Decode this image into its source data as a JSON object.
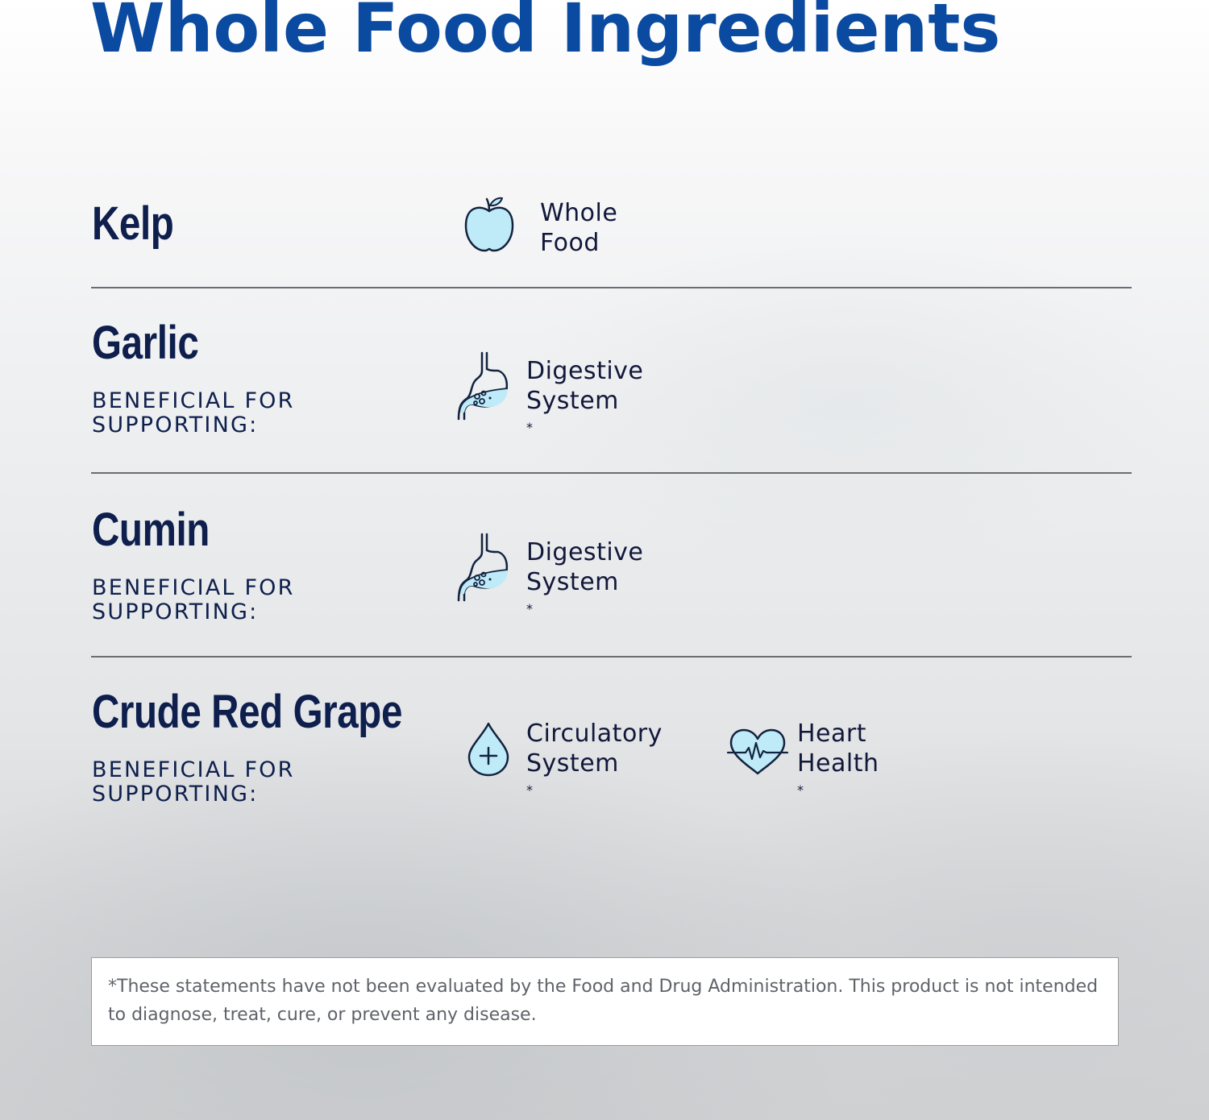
{
  "title": "Whole Food Ingredients",
  "ingredients": [
    {
      "name": "Kelp",
      "benefits": [
        {
          "icon": "apple-icon",
          "line1": "Whole",
          "line2": "Food",
          "asterisk": ""
        }
      ]
    },
    {
      "name": "Garlic",
      "subtitle_line1": "BENEFICIAL FOR",
      "subtitle_line2": "SUPPORTING:",
      "benefits": [
        {
          "icon": "stomach-icon",
          "line1": "Digestive",
          "line2": "System",
          "asterisk": "*"
        }
      ]
    },
    {
      "name": "Cumin",
      "subtitle_line1": "BENEFICIAL FOR",
      "subtitle_line2": "SUPPORTING:",
      "benefits": [
        {
          "icon": "stomach-icon",
          "line1": "Digestive",
          "line2": "System",
          "asterisk": "*"
        }
      ]
    },
    {
      "name": "Crude Red Grape",
      "subtitle_line1": "BENEFICIAL FOR",
      "subtitle_line2": "SUPPORTING:",
      "benefits": [
        {
          "icon": "blood-drop-icon",
          "line1": "Circulatory",
          "line2": "System",
          "asterisk": "*"
        },
        {
          "icon": "heartbeat-icon",
          "line1": "Heart",
          "line2": "Health",
          "asterisk": "*"
        }
      ]
    }
  ],
  "disclaimer": "*These statements have not been evaluated by the Food and Drug Administration. This product is not intended to diagnose, treat, cure, or prevent any disease.",
  "colors": {
    "title": "#0a4aa0",
    "text_dark": "#0e1f4d",
    "icon_fill": "#bfeaf8",
    "icon_stroke": "#12233f",
    "divider": "#6a6d72"
  }
}
